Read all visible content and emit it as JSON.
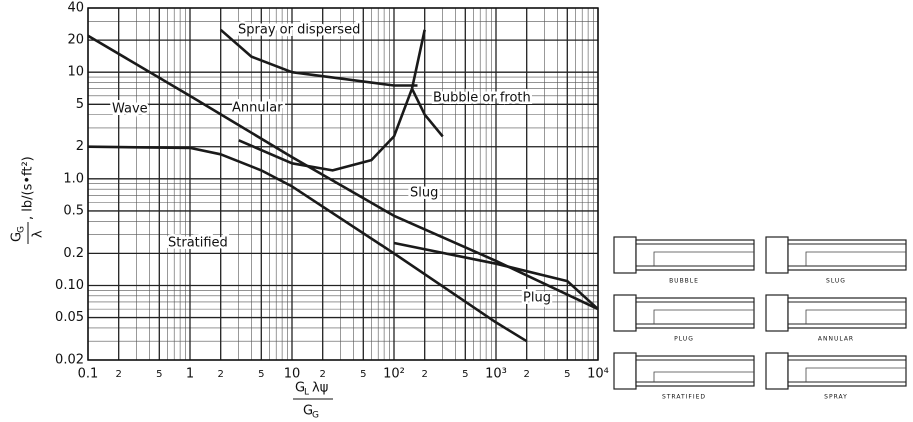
{
  "chart_data": {
    "type": "line",
    "x_label": {
      "numerator": "G",
      "numerator_sub": "L",
      "numerator_rest": "λψ",
      "denominator": "G",
      "denominator_sub": "G"
    },
    "y_label": {
      "numerator": "G",
      "numerator_sub": "G",
      "denominator": "λ",
      "units": ", lb/(s•ft²)"
    },
    "log_x": true,
    "log_y": true,
    "grid": true,
    "xlim": [
      0.1,
      10000
    ],
    "ylim": [
      0.02,
      40
    ],
    "xticks": [
      0.1,
      {
        "value": 0.2,
        "label": "2"
      },
      {
        "value": 0.5,
        "label": "5"
      },
      1,
      {
        "value": 2,
        "label": "2"
      },
      {
        "value": 5,
        "label": "5"
      },
      10,
      {
        "value": 20,
        "label": "2"
      },
      {
        "value": 50,
        "label": "5"
      },
      {
        "value": 100,
        "label": "10²"
      },
      {
        "value": 200,
        "label": "2"
      },
      {
        "value": 500,
        "label": "5"
      },
      {
        "value": 1000,
        "label": "10³"
      },
      {
        "value": 2000,
        "label": "2"
      },
      {
        "value": 5000,
        "label": "5"
      },
      {
        "value": 10000,
        "label": "10⁴"
      }
    ],
    "yticks": [
      0.02,
      0.05,
      {
        "value": 0.1,
        "label": "0.10"
      },
      0.2,
      0.5,
      {
        "value": 1,
        "label": "1.0"
      },
      2,
      5,
      10,
      20,
      40
    ],
    "series": [
      {
        "color": "#1a1a1a",
        "x": [
          0.1,
          1,
          10,
          100,
          1000,
          10000
        ],
        "values": [
          22,
          6,
          1.6,
          0.45,
          0.17,
          0.06
        ]
      },
      {
        "color": "#1a1a1a",
        "x": [
          0.1,
          1,
          2,
          5,
          10,
          100,
          1000,
          2000
        ],
        "values": [
          2,
          1.95,
          1.7,
          1.2,
          0.85,
          0.2,
          0.045,
          0.03
        ]
      },
      {
        "color": "#1a1a1a",
        "x": [
          100,
          1000,
          5000,
          10000
        ],
        "values": [
          0.25,
          0.16,
          0.11,
          0.06
        ]
      },
      {
        "color": "#1a1a1a",
        "x": [
          3,
          10,
          25,
          60,
          100,
          150,
          200
        ],
        "values": [
          2.3,
          1.4,
          1.2,
          1.5,
          2.5,
          7,
          25
        ]
      },
      {
        "color": "#1a1a1a",
        "x": [
          2,
          4,
          10,
          100,
          170
        ],
        "values": [
          25,
          14,
          10,
          7.5,
          7.5
        ]
      },
      {
        "color": "#1a1a1a",
        "x": [
          150,
          200,
          300
        ],
        "values": [
          7,
          4,
          2.5
        ]
      }
    ],
    "annotations": [
      "Spray or dispersed",
      "Annular",
      "Bubble or froth",
      "Wave",
      "Slug",
      "Stratified",
      "Plug"
    ]
  },
  "flow_patterns": [
    "BUBBLE",
    "SLUG",
    "PLUG",
    "ANNULAR",
    "STRATIFIED",
    "SPRAY"
  ]
}
